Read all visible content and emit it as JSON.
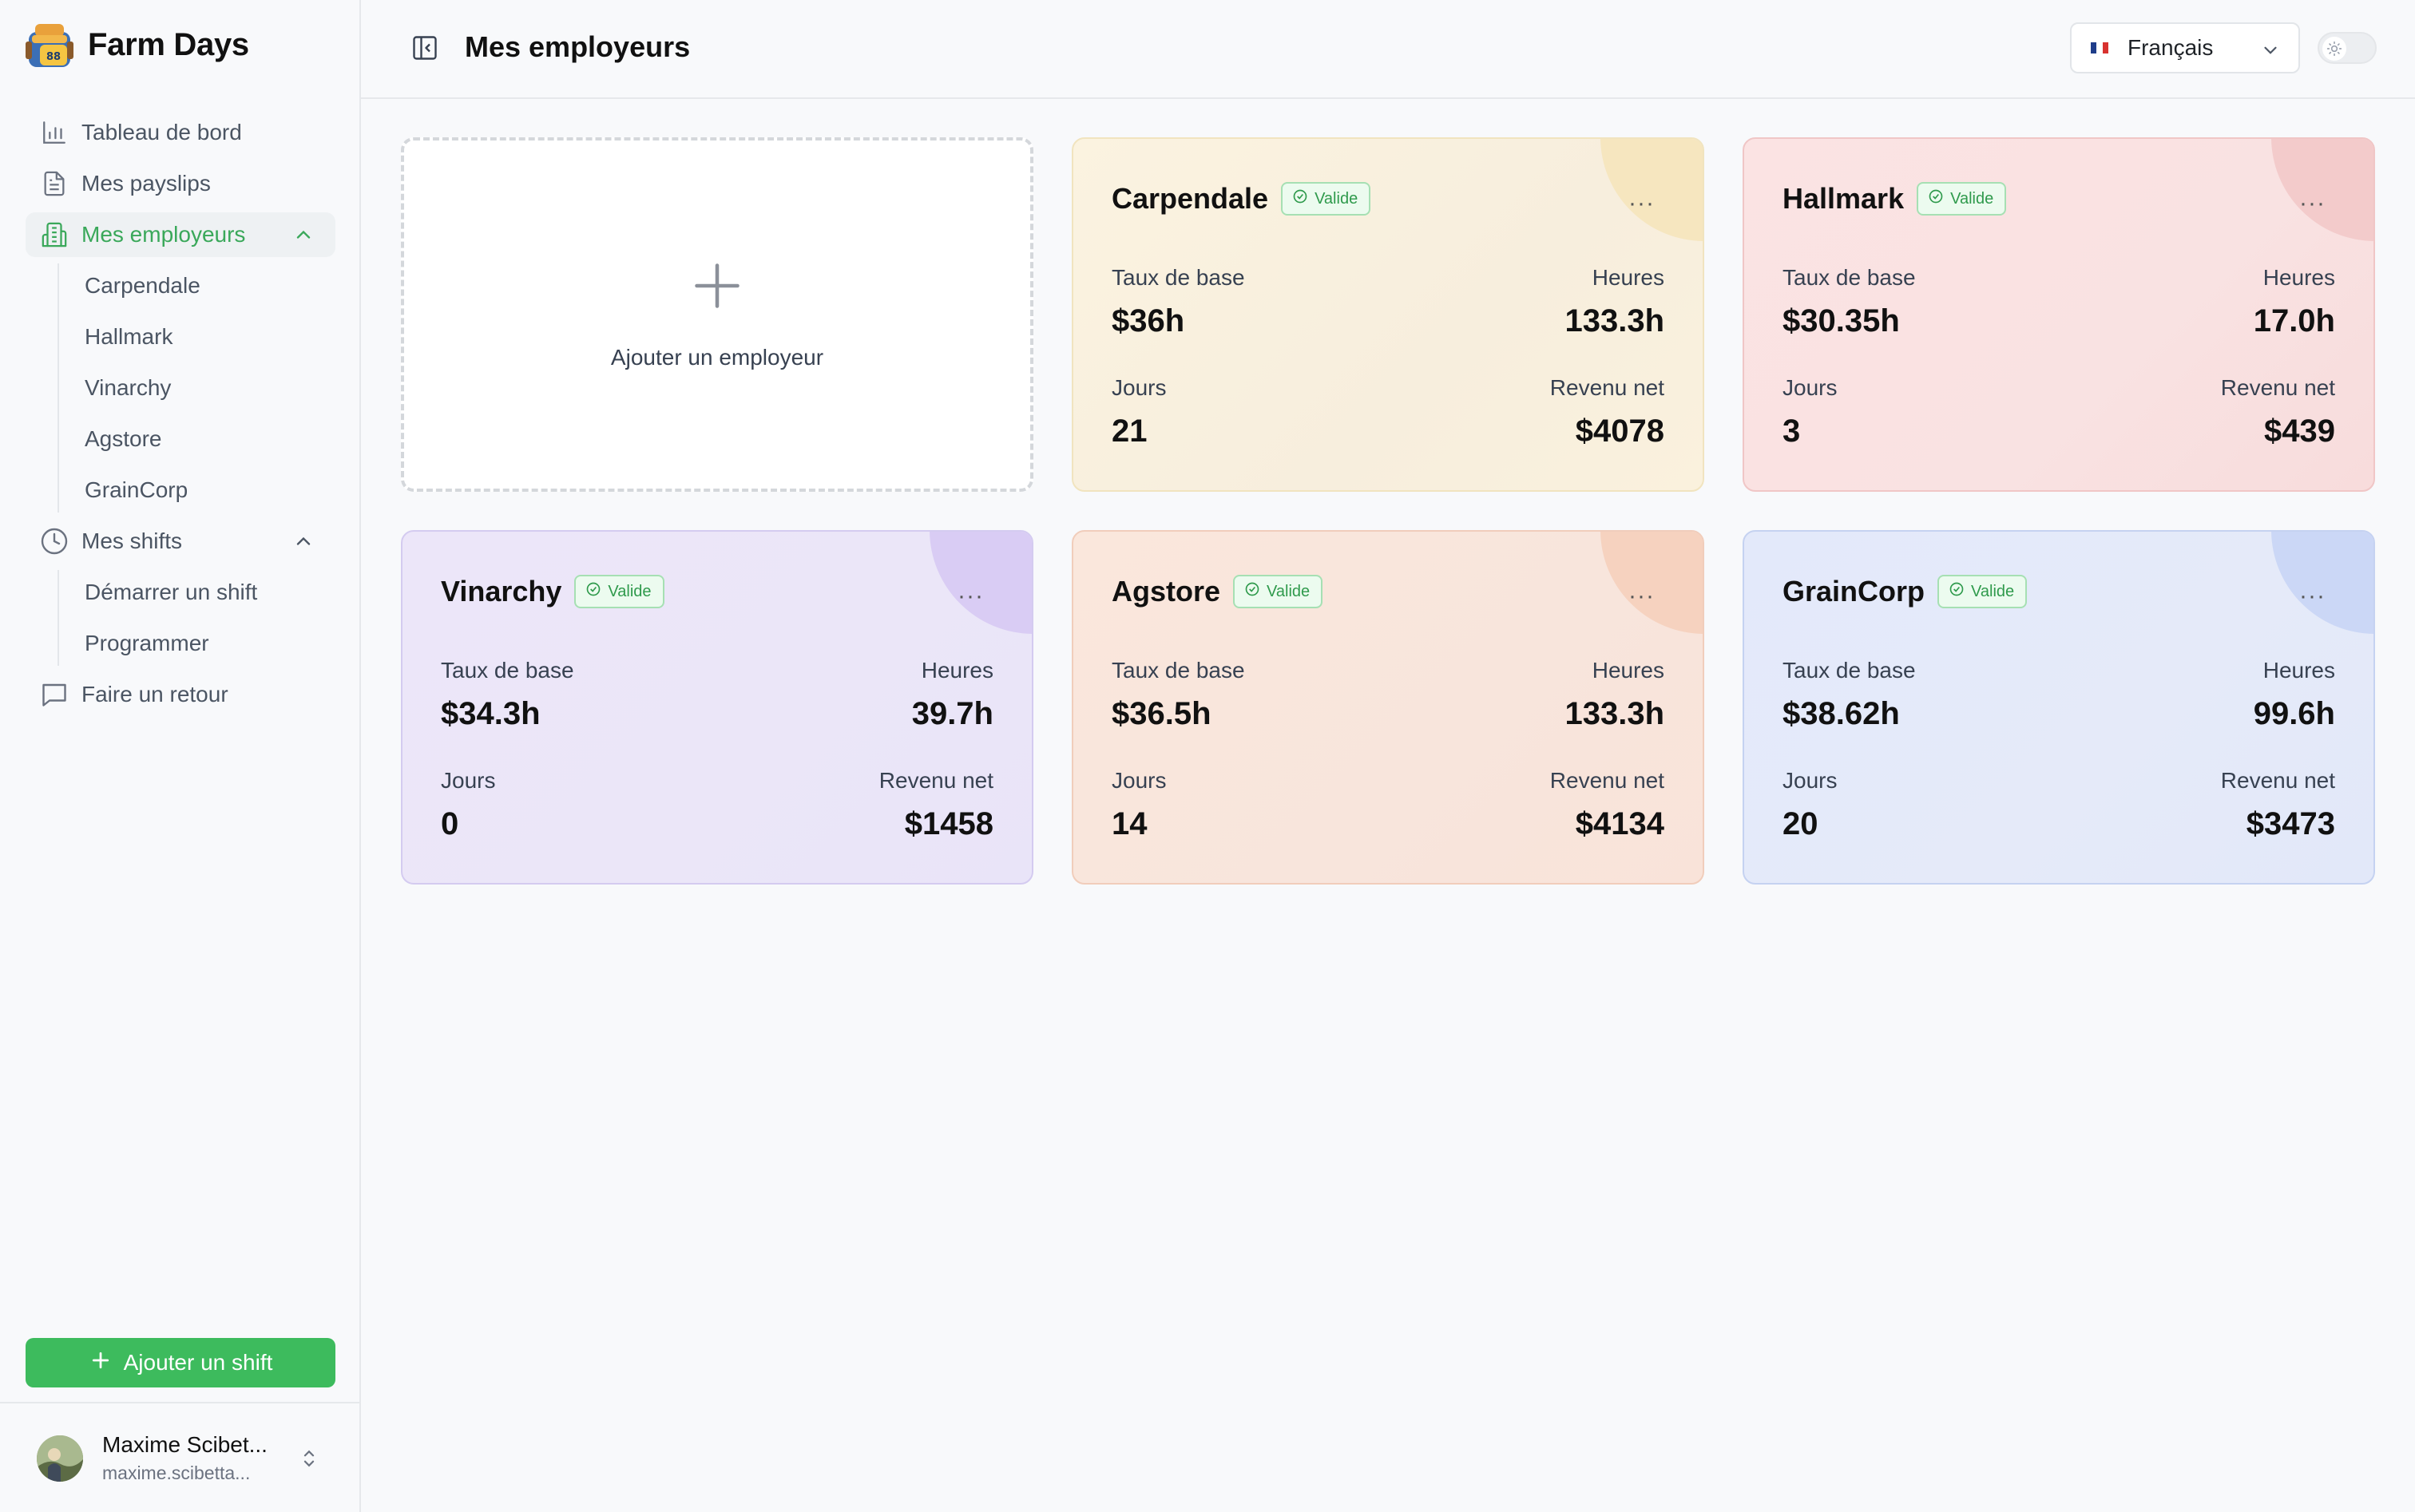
{
  "brand": {
    "name": "Farm Days",
    "logo_badge": "88"
  },
  "sidebar": {
    "items": [
      {
        "label": "Tableau de bord",
        "icon": "bar-chart-icon"
      },
      {
        "label": "Mes payslips",
        "icon": "document-icon"
      },
      {
        "label": "Mes employeurs",
        "icon": "building-icon",
        "active": true,
        "children": [
          "Carpendale",
          "Hallmark",
          "Vinarchy",
          "Agstore",
          "GrainCorp"
        ]
      },
      {
        "label": "Mes shifts",
        "icon": "clock-icon",
        "children": [
          "Démarrer un shift",
          "Programmer"
        ]
      },
      {
        "label": "Faire un retour",
        "icon": "message-icon"
      }
    ],
    "add_shift_label": "Ajouter un shift",
    "user": {
      "name": "Maxime Scibet...",
      "email": "maxime.scibetta..."
    }
  },
  "header": {
    "title": "Mes employeurs",
    "language": "Français"
  },
  "add_card": {
    "label": "Ajouter un employeur"
  },
  "labels": {
    "base_rate": "Taux de base",
    "hours": "Heures",
    "days": "Jours",
    "net_income": "Revenu net",
    "status": "Valide",
    "more": "···"
  },
  "employers": [
    {
      "name": "Carpendale",
      "base_rate": "$36h",
      "hours": "133.3h",
      "days": "21",
      "net": "$4078"
    },
    {
      "name": "Hallmark",
      "base_rate": "$30.35h",
      "hours": "17.0h",
      "days": "3",
      "net": "$439"
    },
    {
      "name": "Vinarchy",
      "base_rate": "$34.3h",
      "hours": "39.7h",
      "days": "0",
      "net": "$1458"
    },
    {
      "name": "Agstore",
      "base_rate": "$36.5h",
      "hours": "133.3h",
      "days": "14",
      "net": "$4134"
    },
    {
      "name": "GrainCorp",
      "base_rate": "$38.62h",
      "hours": "99.6h",
      "days": "20",
      "net": "$3473"
    }
  ],
  "colors": {
    "accent": "#3dbb5d",
    "card_yellow": "#f8f0dc",
    "card_red": "#f9e0e0",
    "card_purple": "#ebe6f8",
    "card_orange": "#f9e5dc",
    "card_blue": "#e4eafa"
  }
}
